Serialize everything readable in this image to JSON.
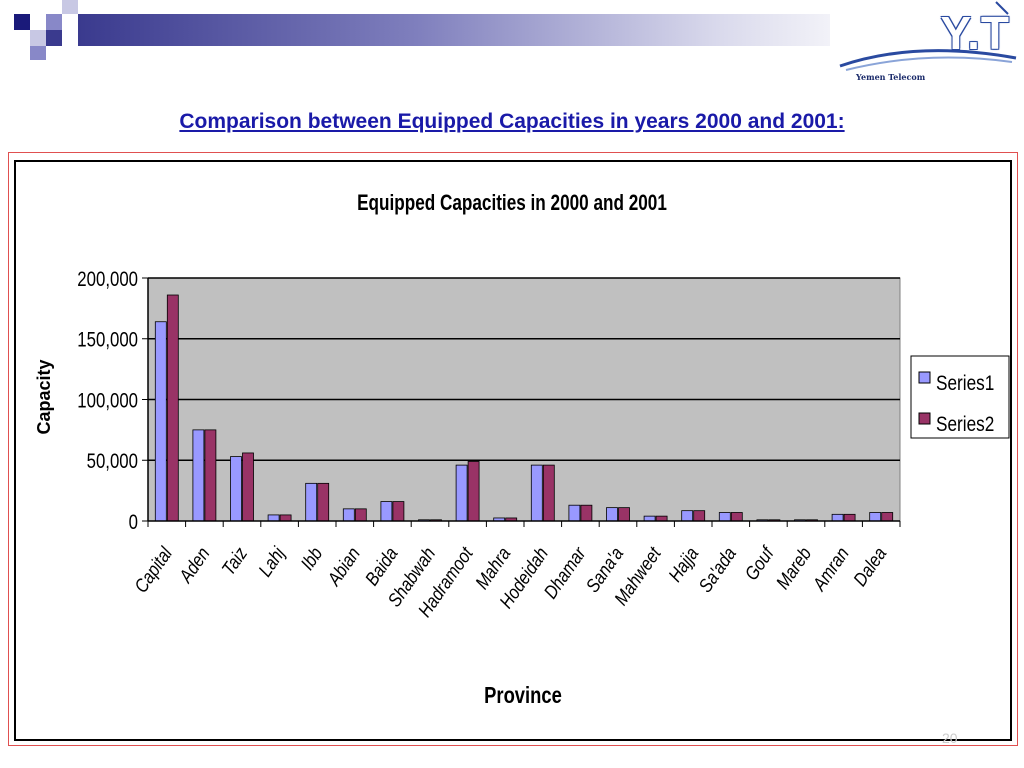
{
  "slide": {
    "title": "Comparison between Equipped Capacities in years 2000 and 2001:",
    "logo_text": "Yemen Telecom",
    "logo_mark": "Y.T",
    "page_number": "20",
    "colors": {
      "title": "#1a1aa8",
      "frame": "#e05050"
    }
  },
  "chart_data": {
    "type": "bar",
    "title": "Equipped Capacities in 2000 and 2001",
    "xlabel": "Province",
    "ylabel": "Capacity",
    "ylim": [
      0,
      200000
    ],
    "yticks": [
      "200,000",
      "150,000",
      "100,000",
      "50,000",
      "0"
    ],
    "ytick_values": [
      200000,
      150000,
      100000,
      50000,
      0
    ],
    "grid": true,
    "legend_position": "right",
    "categories": [
      "Capital",
      "Aden",
      "Taiz",
      "Lahj",
      "Ibb",
      "Abian",
      "Baida",
      "Shabwah",
      "Hadramoot",
      "Mahra",
      "Hodeidah",
      "Dhamar",
      "Sana'a",
      "Mahweet",
      "Hajja",
      "Sa'ada",
      "Gouf",
      "Mareb",
      "Amran",
      "Dalea"
    ],
    "series": [
      {
        "name": "Series1",
        "color": "#9999ff",
        "values": [
          164000,
          75000,
          53000,
          5000,
          31000,
          10000,
          16000,
          1000,
          46000,
          2500,
          46000,
          13000,
          11000,
          4000,
          8500,
          7000,
          1000,
          1000,
          5500,
          7000
        ]
      },
      {
        "name": "Series2",
        "color": "#993366",
        "values": [
          186000,
          75000,
          56000,
          5000,
          31000,
          10000,
          16000,
          1000,
          49000,
          2500,
          46000,
          13000,
          11000,
          4000,
          8500,
          7000,
          1000,
          1000,
          5500,
          7000
        ]
      }
    ]
  }
}
